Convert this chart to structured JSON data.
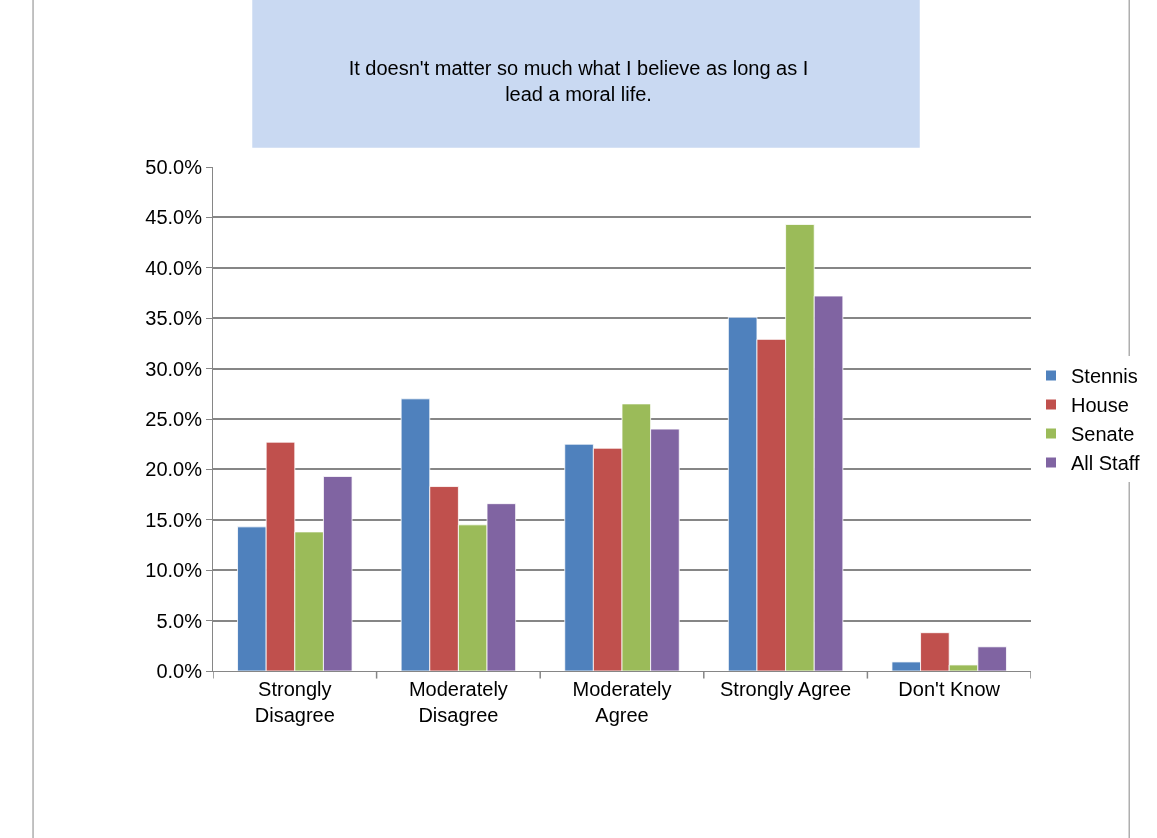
{
  "chart_data": {
    "type": "bar",
    "title": "It doesn't matter so much what I believe as long as I lead a moral life.",
    "categories": [
      "Strongly Disagree",
      "Moderately Disagree",
      "Moderately Agree",
      "Strongly Agree",
      "Don't Know"
    ],
    "series": [
      {
        "name": "Stennis",
        "color": "#4f81bd",
        "values": [
          14.3,
          27.0,
          22.5,
          35.1,
          0.9
        ]
      },
      {
        "name": "House",
        "color": "#c0504d",
        "values": [
          22.7,
          18.3,
          22.1,
          32.9,
          3.8
        ]
      },
      {
        "name": "Senate",
        "color": "#9bbb59",
        "values": [
          13.8,
          14.5,
          26.5,
          44.3,
          0.6
        ]
      },
      {
        "name": "All Staff",
        "color": "#8064a2",
        "values": [
          19.3,
          16.6,
          24.0,
          37.2,
          2.4
        ]
      }
    ],
    "ylim": [
      0,
      50
    ],
    "yticks": [
      {
        "value": 0,
        "label": "0.0%"
      },
      {
        "value": 5,
        "label": "5.0%"
      },
      {
        "value": 10,
        "label": "10.0%"
      },
      {
        "value": 15,
        "label": "15.0%"
      },
      {
        "value": 20,
        "label": "20.0%"
      },
      {
        "value": 25,
        "label": "25.0%"
      },
      {
        "value": 30,
        "label": "30.0%"
      },
      {
        "value": 35,
        "label": "35.0%"
      },
      {
        "value": 40,
        "label": "40.0%"
      },
      {
        "value": 45,
        "label": "45.0%"
      },
      {
        "value": 50,
        "label": "50.0%"
      }
    ],
    "grid": "y",
    "legend": "right"
  }
}
